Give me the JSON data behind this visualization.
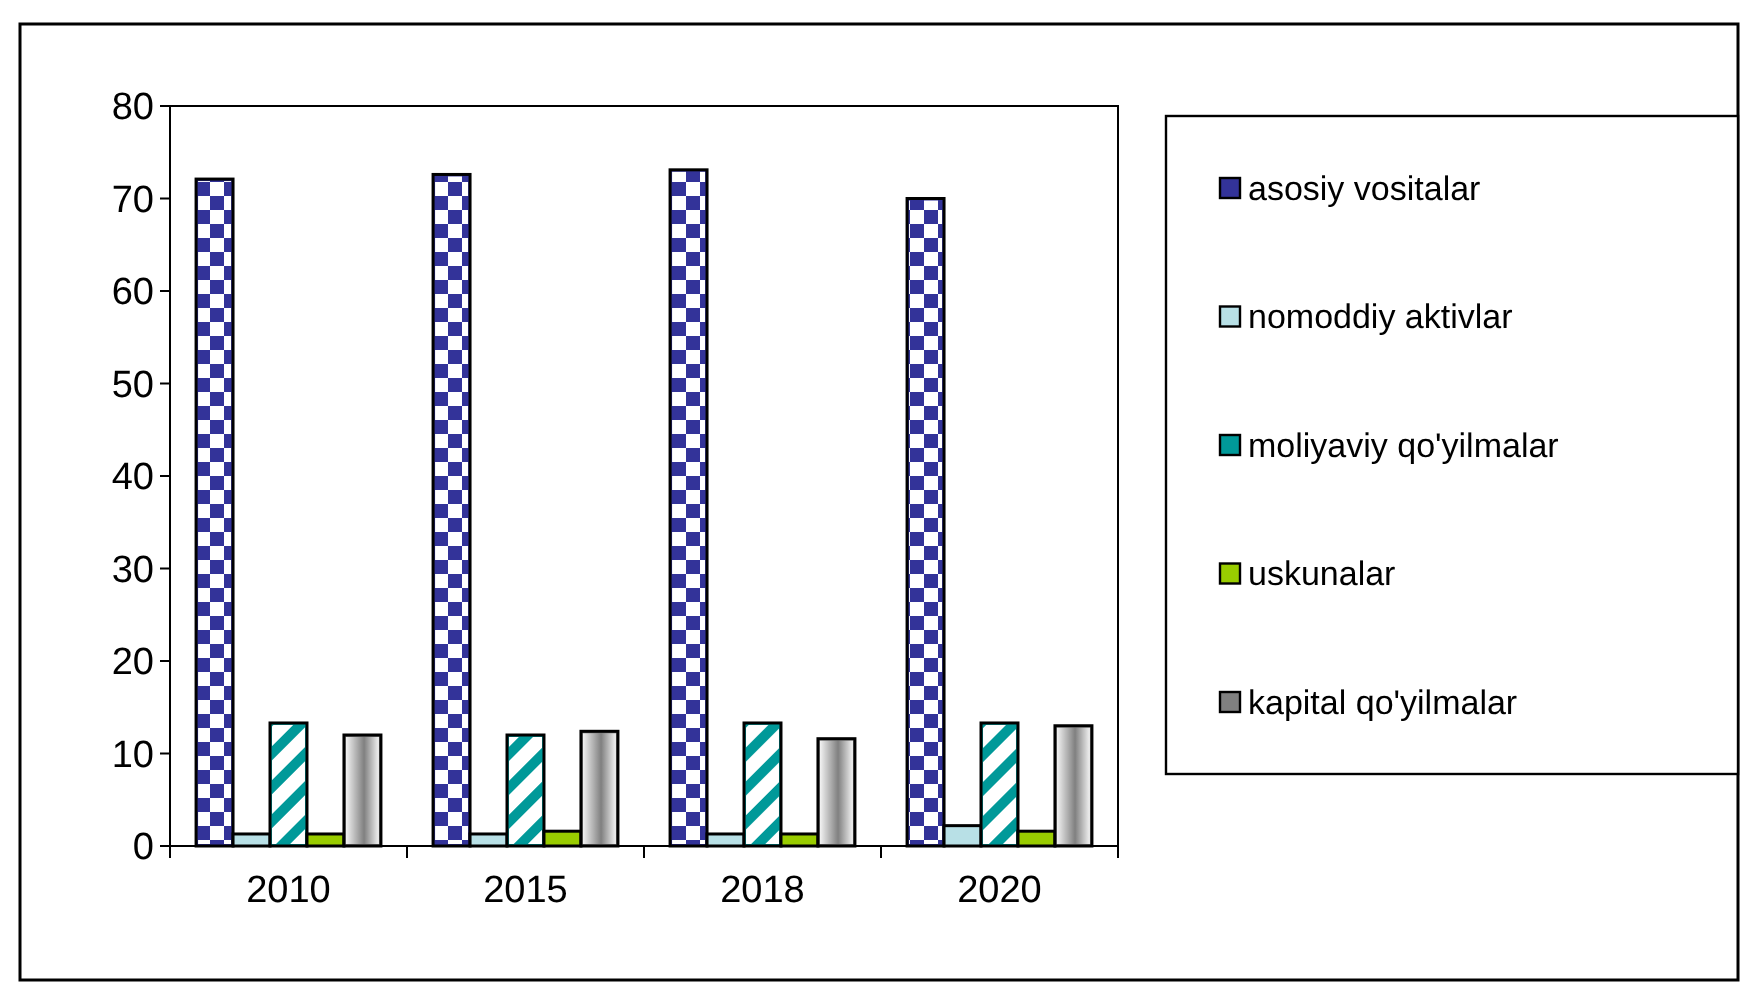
{
  "chart_data": {
    "type": "bar",
    "categories": [
      "2010",
      "2015",
      "2018",
      "2020"
    ],
    "series": [
      {
        "name": "asosiy vositalar",
        "color": "#333399",
        "values": [
          72.1,
          72.6,
          73.1,
          70.0
        ]
      },
      {
        "name": "nomoddiy aktivlar",
        "color": "#b8e0e6",
        "values": [
          1.3,
          1.3,
          1.3,
          2.2
        ]
      },
      {
        "name": "moliyaviy qo'yilmalar",
        "color": "#009999",
        "values": [
          13.3,
          12.0,
          13.3,
          13.3
        ]
      },
      {
        "name": "uskunalar",
        "color": "#99cc00",
        "values": [
          1.3,
          1.6,
          1.3,
          1.6
        ]
      },
      {
        "name": "kapital qo'yilmalar",
        "color": "#808080",
        "values": [
          12.0,
          12.4,
          11.6,
          13.0
        ]
      }
    ],
    "ylim": [
      0,
      80
    ],
    "yticks": [
      0,
      10,
      20,
      30,
      40,
      50,
      60,
      70,
      80
    ],
    "grid": false,
    "legend": "right"
  }
}
